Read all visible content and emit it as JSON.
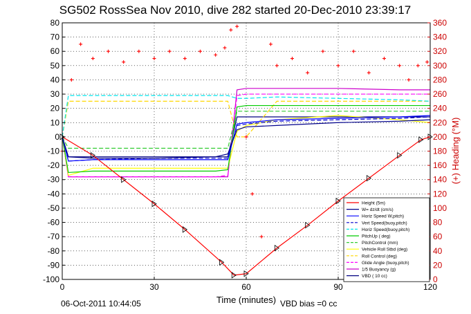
{
  "figure": {
    "title": "SG502 RossSea Nov 2010, dive 282 started 20-Dec-2010 23:39:17",
    "footer_left": "06-Oct-2011 10:44:05",
    "footer_right": "VBD bias =0 cc"
  },
  "chart_data": {
    "type": "line",
    "xlabel": "Time (minutes)",
    "ylabel_right": "(+) Heading (°M)",
    "xlim": [
      0,
      120
    ],
    "ylim": [
      -100,
      80
    ],
    "ylim_right": [
      0,
      360
    ],
    "x_ticks": [
      0,
      30,
      60,
      90,
      120
    ],
    "y_ticks": [
      -100,
      -90,
      -80,
      -70,
      -60,
      -50,
      -40,
      -30,
      -20,
      -10,
      0,
      10,
      20,
      30,
      40,
      50,
      60,
      70,
      80
    ],
    "y_ticks_right": [
      0,
      20,
      40,
      60,
      80,
      100,
      120,
      140,
      160,
      180,
      200,
      220,
      240,
      260,
      280,
      300,
      320,
      340,
      360
    ],
    "grid": true,
    "legend_position": "bottom-right",
    "colors": {
      "depth": "#ff0000",
      "w": "#00008b",
      "horiz": "#0000ff",
      "vert_buoy": "#0000cd",
      "horiz_buoy": "#00e5ee",
      "pitch_up": "#00cc00",
      "pitch_control": "#33cc33",
      "vehicle_roll": "#ffff00",
      "roll_control": "#ffd700",
      "glide_angle": "#ff00ff",
      "buoyancy": "#cc00cc",
      "vbd": "#000080",
      "heading": "#ff0000"
    },
    "series": [
      {
        "name": "Height (5m)",
        "key": "depth",
        "style": "line-marker",
        "x": [
          0,
          10,
          20,
          30,
          40,
          52,
          56,
          60,
          70,
          80,
          90,
          100,
          110,
          117,
          120
        ],
        "y": [
          0,
          -13,
          -30,
          -47,
          -65,
          -88,
          -97,
          -96,
          -78,
          -62,
          -45,
          -29,
          -13,
          -2,
          0
        ]
      },
      {
        "name": "W= dz/dt (cm/s)",
        "key": "w",
        "style": "solid",
        "x": [
          0,
          2,
          10,
          30,
          50,
          54,
          57,
          60,
          70,
          90,
          110,
          120
        ],
        "y": [
          0,
          -14,
          -15,
          -15,
          -14,
          -12,
          5,
          7,
          8,
          10,
          11,
          12
        ]
      },
      {
        "name": "Horiz Speed W,pitch)",
        "key": "horiz",
        "style": "solid",
        "x": [
          0,
          2,
          10,
          30,
          50,
          54,
          57,
          60,
          70,
          90,
          110,
          120
        ],
        "y": [
          0,
          -17,
          -16,
          -16,
          -16,
          -16,
          9,
          10,
          12,
          13,
          14,
          15
        ]
      },
      {
        "name": "Vert Speed(buoy,pitch)",
        "key": "vert_buoy",
        "style": "dashed",
        "x": [
          0,
          2,
          10,
          30,
          50,
          54,
          57,
          60,
          70,
          90,
          110,
          120
        ],
        "y": [
          0,
          -17,
          -16,
          -15,
          -15,
          -15,
          8,
          9,
          11,
          12,
          13,
          14
        ]
      },
      {
        "name": "Horiz Speed(buoy,pitch)",
        "key": "horiz_buoy",
        "style": "dashed",
        "x": [
          0,
          2,
          10,
          30,
          50,
          54,
          57,
          60,
          70,
          90,
          110,
          120
        ],
        "y": [
          0,
          29,
          29,
          29,
          29,
          29,
          27,
          27,
          28,
          27,
          26,
          25
        ]
      },
      {
        "name": "PitchUp ( deg)",
        "key": "pitch_up",
        "style": "solid",
        "x": [
          0,
          2,
          10,
          30,
          50,
          54,
          57,
          60,
          70,
          90,
          110,
          120
        ],
        "y": [
          0,
          -25,
          -24,
          -24,
          -24,
          -23,
          21,
          22,
          22,
          22,
          22,
          22
        ]
      },
      {
        "name": "PitchControl (mm)",
        "key": "pitch_control",
        "style": "dashed",
        "x": [
          0,
          2,
          10,
          30,
          50,
          54,
          57,
          60,
          70,
          90,
          110,
          120
        ],
        "y": [
          0,
          -8,
          -8,
          -8,
          -8,
          -8,
          18,
          18,
          18,
          18,
          18,
          18
        ]
      },
      {
        "name": "Vehicle Roll Stbd (deg)",
        "key": "vehicle_roll",
        "style": "solid",
        "x": [
          0,
          2,
          10,
          30,
          50,
          54,
          57,
          60,
          70,
          90,
          110,
          120
        ],
        "y": [
          0,
          -27,
          -22,
          -22,
          -22,
          -22,
          4,
          8,
          12,
          15,
          12,
          10
        ]
      },
      {
        "name": "Roll Control (deg)",
        "key": "roll_control",
        "style": "dashed",
        "x": [
          0,
          2,
          10,
          30,
          50,
          54,
          57,
          60,
          70,
          90,
          110,
          120
        ],
        "y": [
          0,
          25,
          25,
          25,
          25,
          25,
          0,
          0,
          25,
          25,
          25,
          25
        ]
      },
      {
        "name": "Glide Angle (buoy,pitch)",
        "key": "glide_angle",
        "style": "dashed",
        "x": [
          0,
          2,
          10,
          30,
          50,
          54,
          57,
          60,
          70,
          90,
          110,
          120
        ],
        "y": [
          0,
          -28,
          -28,
          -28,
          -28,
          -27,
          29,
          30,
          30,
          30,
          30,
          30
        ]
      },
      {
        "name": "1/5 Buoyancy (g)",
        "key": "buoyancy",
        "style": "solid",
        "x": [
          0,
          2,
          10,
          30,
          50,
          54,
          57,
          60,
          70,
          90,
          110,
          120
        ],
        "y": [
          0,
          -28,
          -28,
          -28,
          -28,
          -28,
          33,
          34,
          34,
          34,
          33,
          33
        ]
      },
      {
        "name": "VBD ( 10 cc)",
        "key": "vbd",
        "style": "solid",
        "x": [
          0,
          2,
          10,
          30,
          50,
          54,
          57,
          60,
          70,
          90,
          110,
          120
        ],
        "y": [
          0,
          -14,
          -14,
          -14,
          -14,
          -14,
          14,
          14,
          14,
          14,
          14,
          14
        ]
      }
    ],
    "heading": {
      "name": "Heading (°M)",
      "axis": "right",
      "style": "markers",
      "x": [
        0,
        3,
        6,
        10,
        15,
        20,
        25,
        30,
        35,
        40,
        45,
        50,
        53,
        55,
        57,
        60,
        62,
        65,
        68,
        70,
        75,
        80,
        85,
        90,
        95,
        100,
        105,
        110,
        113,
        116,
        119
      ],
      "y": [
        180,
        280,
        330,
        310,
        320,
        305,
        320,
        310,
        320,
        310,
        320,
        315,
        325,
        350,
        355,
        200,
        120,
        60,
        330,
        300,
        310,
        290,
        320,
        300,
        320,
        290,
        310,
        300,
        280,
        300,
        305
      ]
    }
  }
}
